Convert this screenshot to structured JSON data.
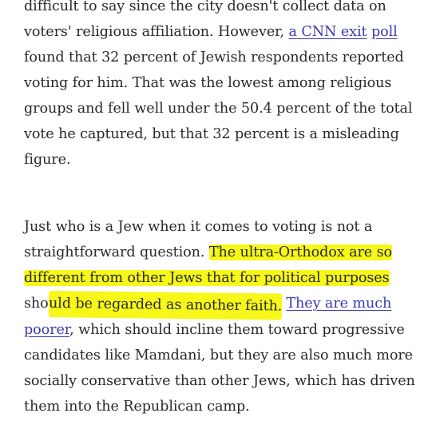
{
  "article": {
    "paragraph1": {
      "l1": "difficult to say since the city doesn't collect data on",
      "l2_pre": "voters' religious affiliation. However, ",
      "l2_link1": "a CNN exit",
      "l2_space": " ",
      "l2_link2": "poll",
      "l3": "found that 32 percent of Jewish respondents reported",
      "l4": "voting for him. That was the lowest among religious",
      "l5": "groups and fell well under the 50.4 percent of the total",
      "l6": "vote he captured, but that 32 percent is a misleading",
      "l7": "figure."
    },
    "paragraph2": {
      "l1": "Just who is a Jew when it comes to voting is not a",
      "l2_pre": "straightforward question. ",
      "l2_hl": "The ultra-Orthodox are so",
      "l3_hl": "different from other Jews that for political purposes",
      "l4_plain": "sho",
      "l4_hl": "uld be regarded as another faith.",
      "l4_space": " ",
      "l4_link": "They are much",
      "l5_link": "poorer",
      "l5_rest": ", which should incline them toward progressive",
      "l6": "candidates like Mamdani, but they are also much more",
      "l7": "socially conservative than other Jews, which has driven",
      "l8": "them into the Republican camp."
    }
  },
  "colors": {
    "text": "#2a2a2a",
    "link": "#3a3ab5",
    "highlight": "#f7f71a",
    "background": "#ffffff"
  }
}
